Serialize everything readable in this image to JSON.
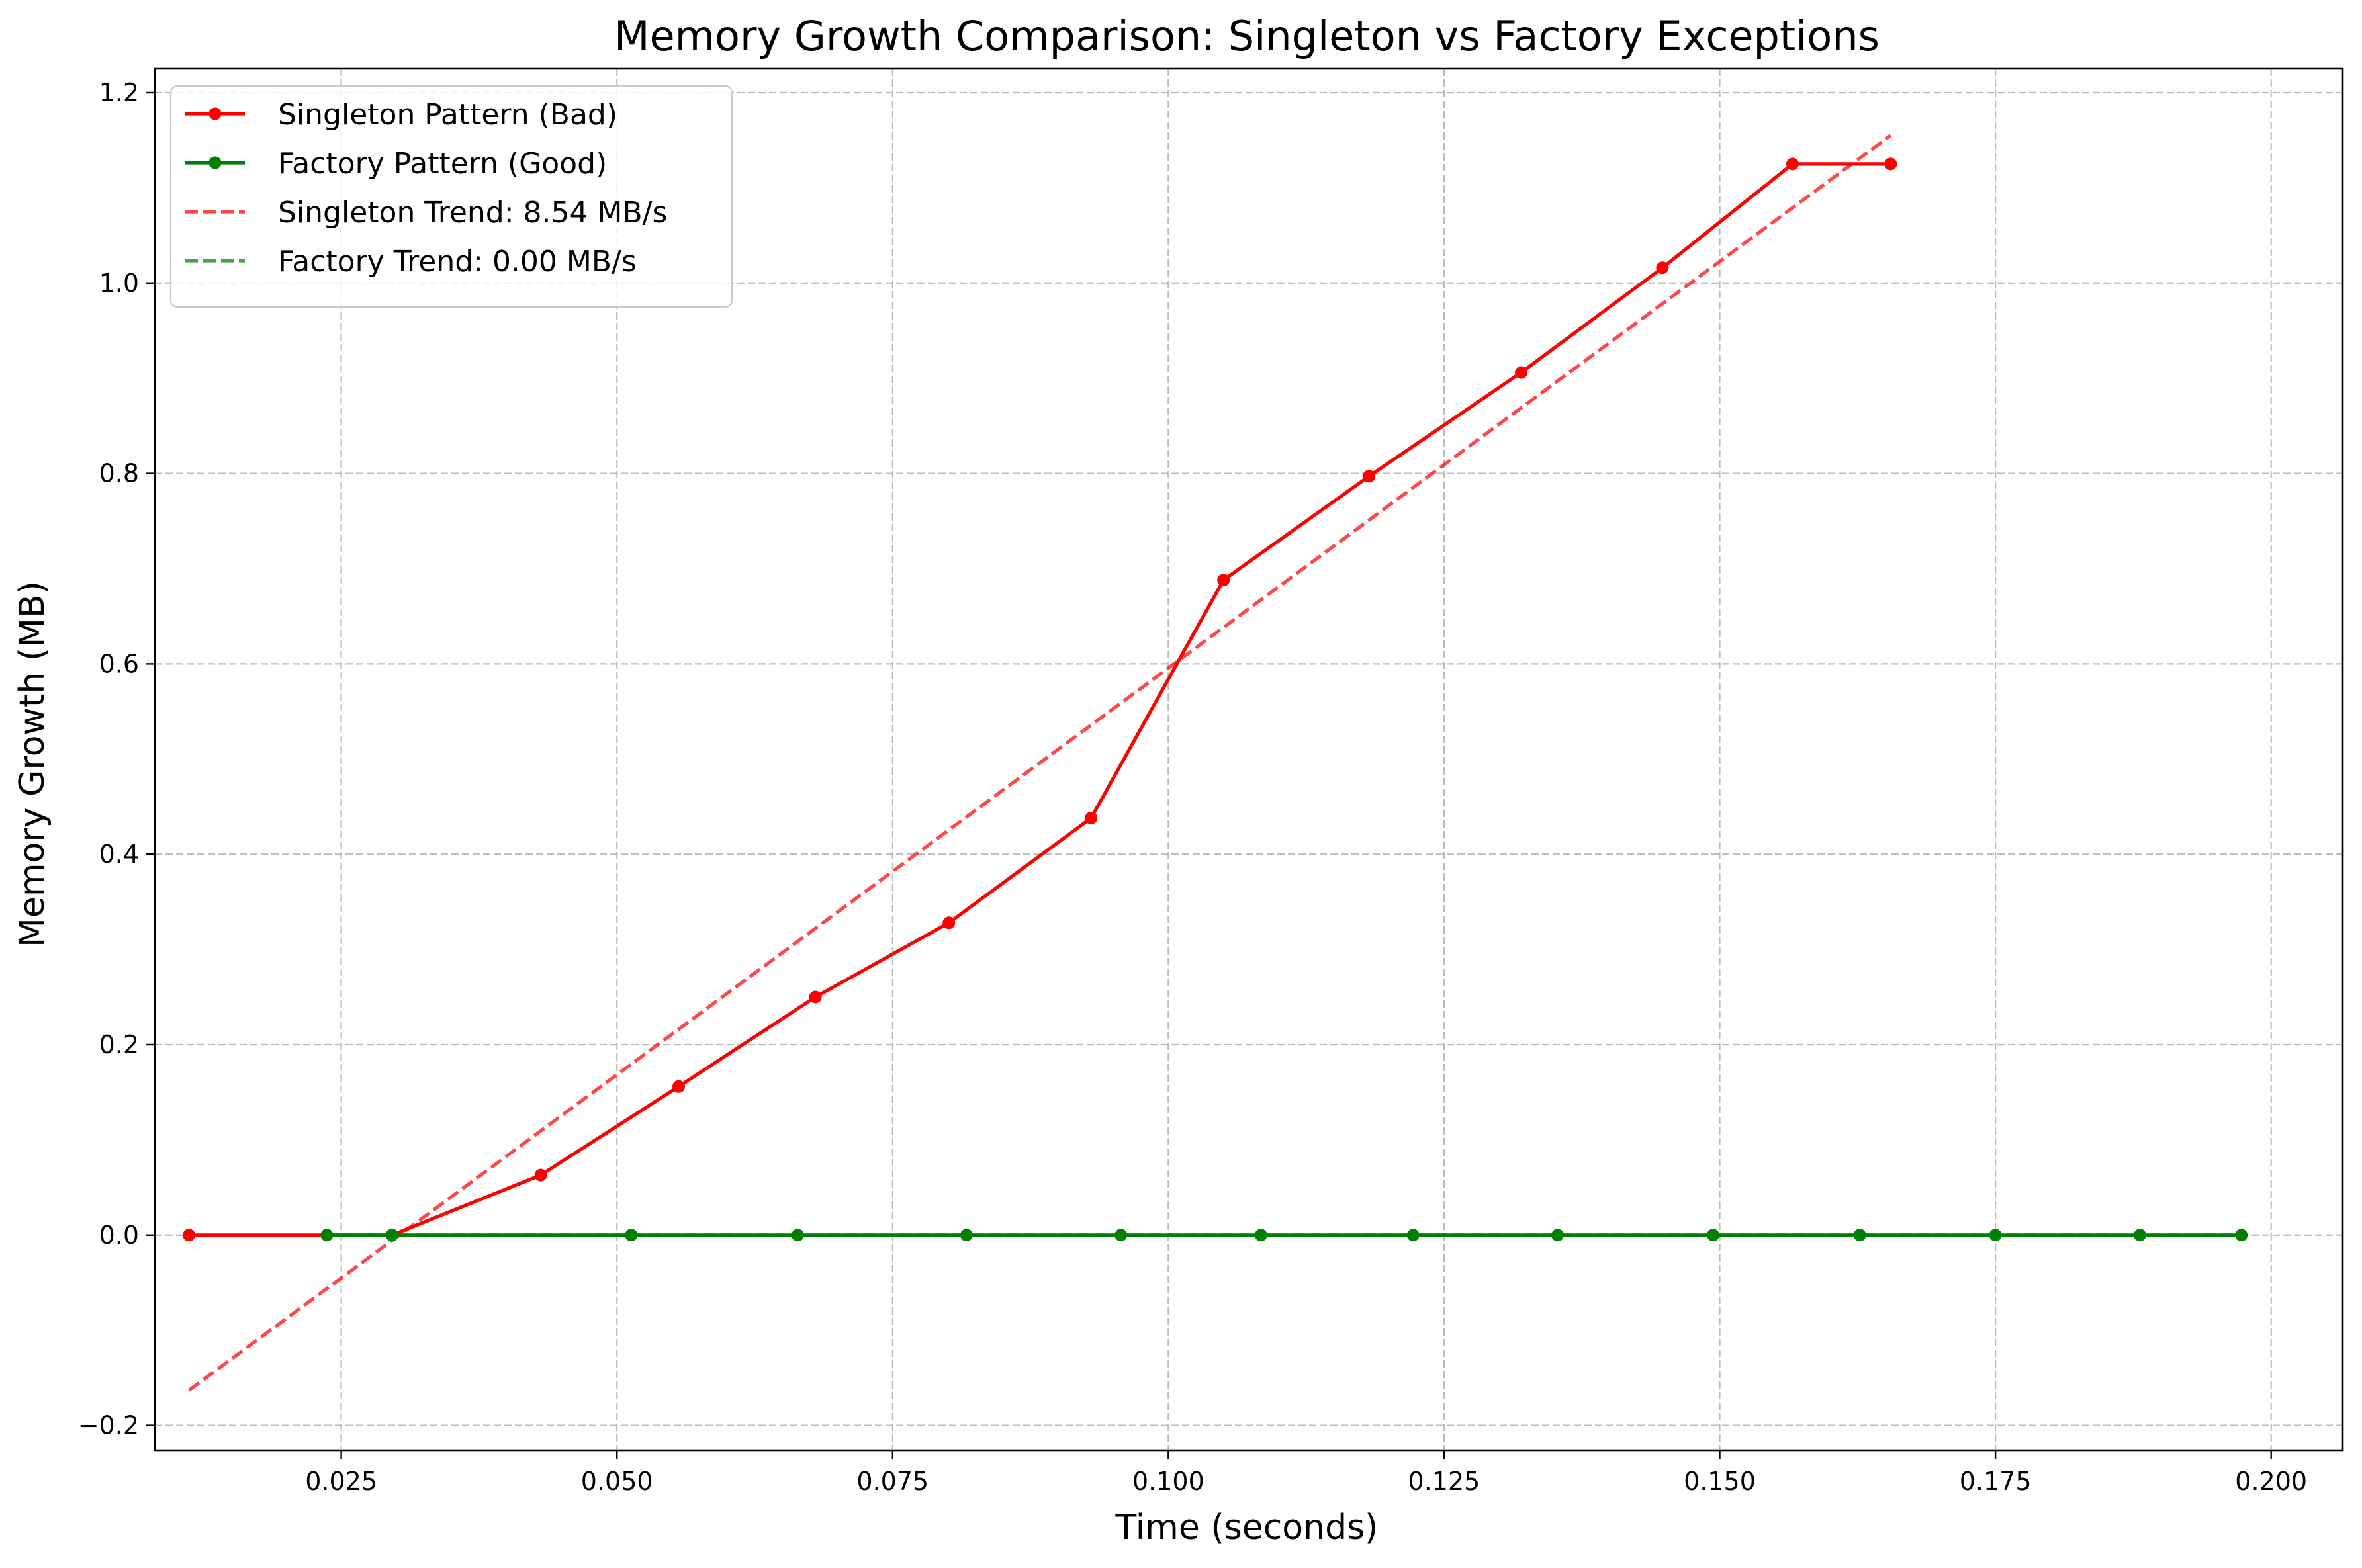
{
  "chart_data": {
    "type": "line",
    "title": "Memory Growth Comparison: Singleton vs Factory Exceptions",
    "xlabel": "Time (seconds)",
    "ylabel": "Memory Growth (MB)",
    "xlim": [
      0.0081,
      0.2065
    ],
    "ylim": [
      -0.226,
      1.225
    ],
    "xticks": [
      0.025,
      0.05,
      0.075,
      0.1,
      0.125,
      0.15,
      0.175,
      0.2
    ],
    "xtick_labels": [
      "0.025",
      "0.050",
      "0.075",
      "0.100",
      "0.125",
      "0.150",
      "0.175",
      "0.200"
    ],
    "yticks": [
      -0.2,
      0.0,
      0.2,
      0.4,
      0.6,
      0.8,
      1.0,
      1.2
    ],
    "ytick_labels": [
      "−0.2",
      "0.0",
      "0.2",
      "0.4",
      "0.6",
      "0.8",
      "1.0",
      "1.2"
    ],
    "grid": true,
    "legend_position": "top-left",
    "series": [
      {
        "name": "Singleton Pattern (Bad)",
        "color": "#ff0000",
        "style": "solid",
        "marker": "circle",
        "x": [
          0.0112,
          0.0237,
          0.0296,
          0.0431,
          0.0556,
          0.068,
          0.0801,
          0.093,
          0.105,
          0.1182,
          0.132,
          0.1448,
          0.1566,
          0.1655
        ],
        "y": [
          0.0,
          0.0,
          0.0,
          0.063,
          0.156,
          0.25,
          0.328,
          0.438,
          0.688,
          0.797,
          0.906,
          1.016,
          1.125,
          1.125
        ]
      },
      {
        "name": "Factory Pattern (Good)",
        "color": "#008000",
        "style": "solid",
        "marker": "circle",
        "x": [
          0.0237,
          0.0296,
          0.0513,
          0.0664,
          0.0817,
          0.0957,
          0.1084,
          0.1222,
          0.1353,
          0.1494,
          0.1627,
          0.175,
          0.1881,
          0.1973
        ],
        "y": [
          0.0,
          0.0,
          0.0,
          0.0,
          0.0,
          0.0,
          0.0,
          0.0,
          0.0,
          0.0,
          0.0,
          0.0,
          0.0,
          0.0
        ]
      },
      {
        "name": "Singleton Trend: 8.54 MB/s",
        "color": "#ff0000",
        "style": "dashed",
        "marker": "none",
        "x": [
          0.0112,
          0.1655
        ],
        "y": [
          -0.163,
          1.155
        ]
      },
      {
        "name": "Factory Trend: 0.00 MB/s",
        "color": "#008000",
        "style": "dashed",
        "marker": "none",
        "x": [
          0.0237,
          0.1973
        ],
        "y": [
          0.0,
          0.0
        ]
      }
    ]
  }
}
